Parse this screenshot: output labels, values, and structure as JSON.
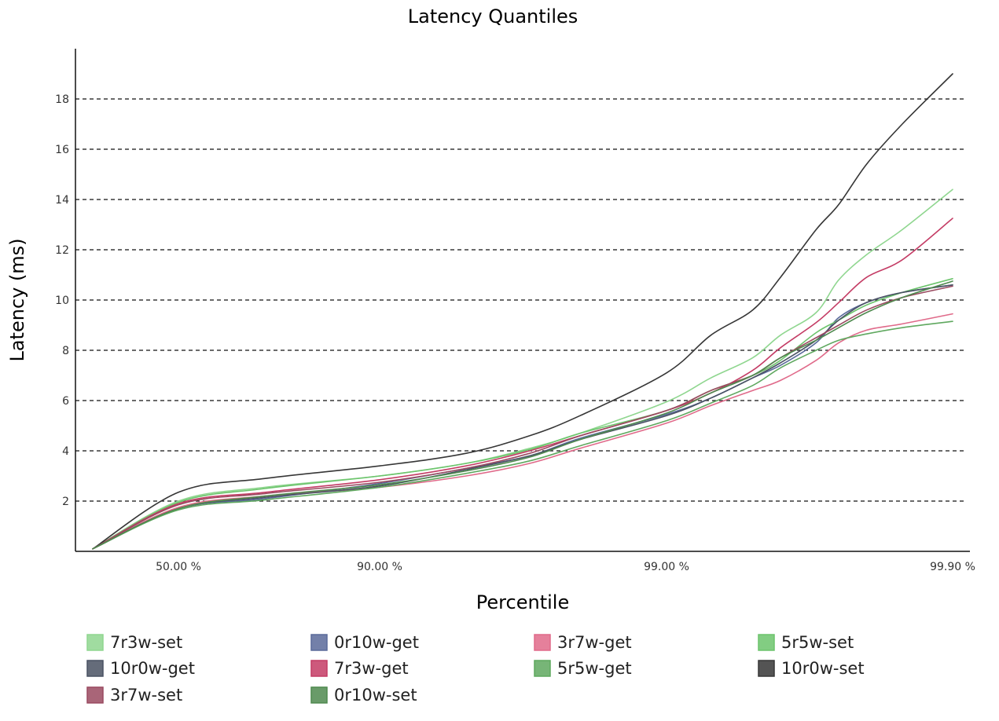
{
  "chart_data": {
    "type": "line",
    "title": "Latency Quantiles",
    "xlabel": "Percentile",
    "ylabel": "Latency (ms)",
    "x_scale": "inverse-percentile-log",
    "x_ticks": [
      "50.00 %",
      "90.00 %",
      "99.00 %",
      "99.90 %"
    ],
    "x_tick_values": [
      50,
      90,
      99,
      99.9
    ],
    "x": [
      0,
      50,
      75,
      90,
      95,
      97,
      98,
      99,
      99.3,
      99.5,
      99.6,
      99.7,
      99.75,
      99.8,
      99.85,
      99.9
    ],
    "ylim": [
      0,
      20
    ],
    "y_ticks": [
      2,
      4,
      6,
      8,
      10,
      12,
      14,
      16,
      18
    ],
    "grid": "horizontal-dashed",
    "legend_position": "bottom",
    "series": [
      {
        "name": "7r3w-set",
        "color": "#8fd68f",
        "values": [
          0.1,
          2.0,
          2.55,
          3.0,
          3.5,
          4.1,
          4.7,
          5.95,
          6.9,
          7.7,
          8.6,
          9.5,
          10.8,
          11.8,
          12.8,
          14.4
        ]
      },
      {
        "name": "0r10w-get",
        "color": "#5a6a9a",
        "values": [
          0.1,
          1.7,
          2.1,
          2.7,
          3.3,
          3.8,
          4.5,
          5.45,
          6.1,
          6.9,
          7.4,
          8.3,
          9.3,
          9.9,
          10.3,
          10.6
        ]
      },
      {
        "name": "3r7w-get",
        "color": "#e06a8a",
        "values": [
          0.1,
          1.75,
          2.2,
          2.55,
          3.0,
          3.5,
          4.1,
          5.1,
          5.8,
          6.4,
          6.8,
          7.6,
          8.3,
          8.8,
          9.05,
          9.45
        ]
      },
      {
        "name": "5r5w-set",
        "color": "#6cc46c",
        "values": [
          0.1,
          1.95,
          2.5,
          3.0,
          3.5,
          4.05,
          4.7,
          5.6,
          6.4,
          7.0,
          7.6,
          8.7,
          9.2,
          9.8,
          10.3,
          10.85
        ]
      },
      {
        "name": "10r0w-get",
        "color": "#4a5263",
        "values": [
          0.1,
          1.7,
          2.15,
          2.6,
          3.25,
          3.8,
          4.45,
          5.4,
          6.1,
          6.9,
          7.5,
          8.4,
          9.2,
          9.9,
          10.3,
          10.6
        ]
      },
      {
        "name": "7r3w-get",
        "color": "#c43c65",
        "values": [
          0.1,
          1.9,
          2.35,
          2.85,
          3.4,
          4.0,
          4.6,
          5.6,
          6.3,
          7.2,
          8.1,
          9.1,
          9.9,
          10.9,
          11.6,
          13.25
        ]
      },
      {
        "name": "5r5w-get",
        "color": "#5fa85f",
        "values": [
          0.1,
          1.65,
          2.05,
          2.55,
          3.1,
          3.6,
          4.2,
          5.2,
          5.9,
          6.6,
          7.3,
          8.0,
          8.4,
          8.65,
          8.9,
          9.15
        ]
      },
      {
        "name": "10r0w-set",
        "color": "#363636",
        "values": [
          0.1,
          2.35,
          2.9,
          3.4,
          3.9,
          4.6,
          5.4,
          7.1,
          8.6,
          9.6,
          10.9,
          12.8,
          13.8,
          15.4,
          17.0,
          19.0
        ]
      },
      {
        "name": "3r7w-set",
        "color": "#9a4a60",
        "values": [
          0.1,
          1.85,
          2.3,
          2.75,
          3.3,
          3.9,
          4.6,
          5.6,
          6.4,
          7.0,
          7.7,
          8.5,
          9.0,
          9.6,
          10.1,
          10.55
        ]
      },
      {
        "name": "0r10w-set",
        "color": "#4f8a4f",
        "values": [
          0.1,
          1.7,
          2.2,
          2.65,
          3.2,
          3.75,
          4.45,
          5.5,
          6.3,
          7.0,
          7.7,
          8.4,
          8.9,
          9.5,
          10.1,
          10.75
        ]
      }
    ]
  }
}
